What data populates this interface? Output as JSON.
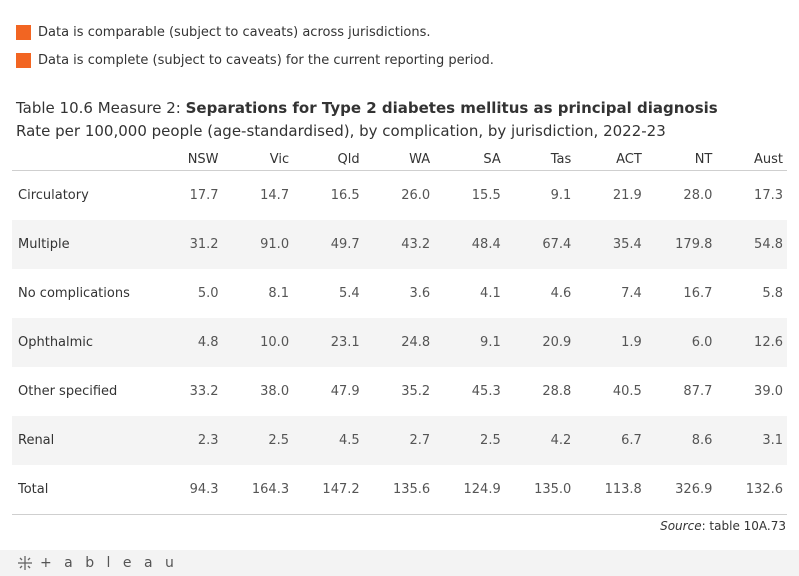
{
  "legend": {
    "items": [
      {
        "label": "Data is comparable (subject to caveats) across jurisdictions.",
        "color": "#f26522"
      },
      {
        "label": "Data is complete (subject to caveats) for the current reporting period.",
        "color": "#f26522"
      }
    ]
  },
  "title": {
    "prefix": "Table 10.6 Measure 2: ",
    "main": "Separations for Type 2 diabetes mellitus as principal diagnosis",
    "subtitle": "Rate per 100,000 people (age-standardised), by complication, by jurisdiction, 2022-23"
  },
  "chart_data": {
    "type": "table",
    "columns": [
      "NSW",
      "Vic",
      "Qld",
      "WA",
      "SA",
      "Tas",
      "ACT",
      "NT",
      "Aust"
    ],
    "rows": [
      {
        "label": "Circulatory",
        "values": [
          "17.7",
          "14.7",
          "16.5",
          "26.0",
          "15.5",
          "9.1",
          "21.9",
          "28.0",
          "17.3"
        ]
      },
      {
        "label": "Multiple",
        "values": [
          "31.2",
          "91.0",
          "49.7",
          "43.2",
          "48.4",
          "67.4",
          "35.4",
          "179.8",
          "54.8"
        ]
      },
      {
        "label": "No complications",
        "values": [
          "5.0",
          "8.1",
          "5.4",
          "3.6",
          "4.1",
          "4.6",
          "7.4",
          "16.7",
          "5.8"
        ]
      },
      {
        "label": "Ophthalmic",
        "values": [
          "4.8",
          "10.0",
          "23.1",
          "24.8",
          "9.1",
          "20.9",
          "1.9",
          "6.0",
          "12.6"
        ]
      },
      {
        "label": "Other specified",
        "values": [
          "33.2",
          "38.0",
          "47.9",
          "35.2",
          "45.3",
          "28.8",
          "40.5",
          "87.7",
          "39.0"
        ]
      },
      {
        "label": "Renal",
        "values": [
          "2.3",
          "2.5",
          "4.5",
          "2.7",
          "2.5",
          "4.2",
          "6.7",
          "8.6",
          "3.1"
        ]
      },
      {
        "label": "Total",
        "values": [
          "94.3",
          "164.3",
          "147.2",
          "135.6",
          "124.9",
          "135.0",
          "113.8",
          "326.9",
          "132.6"
        ]
      }
    ]
  },
  "source": {
    "label": "Source",
    "text": ": table 10A.73"
  },
  "footer": {
    "brand": "+ a b l e a u",
    "logo_icon": "tableau-logo-icon"
  }
}
